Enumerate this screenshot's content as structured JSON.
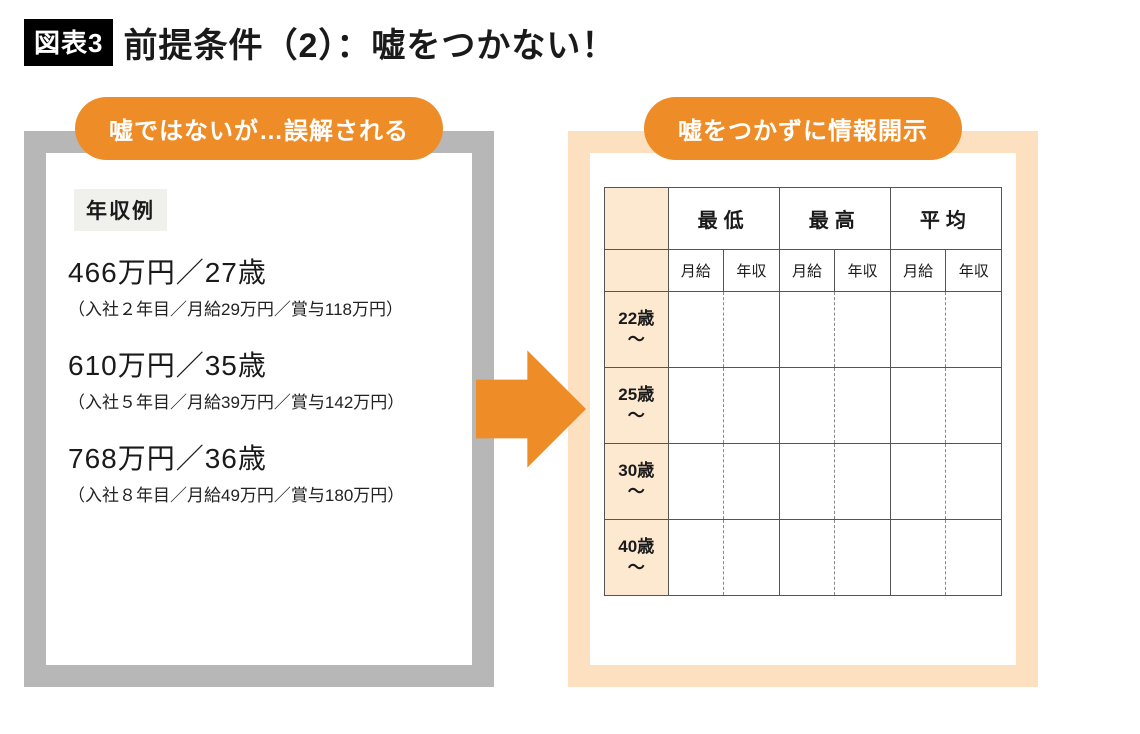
{
  "header": {
    "badge": "図表3",
    "title": "前提条件（2）：嘘をつかない！"
  },
  "left_panel": {
    "pill": "嘘ではないが…誤解される",
    "tag": "年収例",
    "border_color": "#b7b7b7",
    "examples": [
      {
        "main": "466万円／27歳",
        "sub": "（入社２年目／月給29万円／賞与118万円）"
      },
      {
        "main": "610万円／35歳",
        "sub": "（入社５年目／月給39万円／賞与142万円）"
      },
      {
        "main": "768万円／36歳",
        "sub": "（入社８年目／月給49万円／賞与180万円）"
      }
    ]
  },
  "right_panel": {
    "pill": "嘘をつかずに情報開示",
    "border_color": "#fde0c0",
    "table": {
      "group_headers": [
        "最低",
        "最高",
        "平均"
      ],
      "sub_headers": [
        "月給",
        "年収"
      ],
      "row_headers": [
        "22歳～",
        "25歳～",
        "30歳～",
        "40歳～"
      ],
      "rowhead_bg": "#fde8d0"
    }
  },
  "arrow": {
    "color": "#ee8d27",
    "width": 150,
    "height": 160
  },
  "colors": {
    "accent": "#ee8d27",
    "badge_bg": "#000000",
    "badge_fg": "#ffffff",
    "left_border": "#b7b7b7",
    "right_border": "#fde0c0",
    "table_border": "#555555",
    "rowhead_bg": "#fde8d0",
    "tag_bg": "#f0f0ec"
  }
}
